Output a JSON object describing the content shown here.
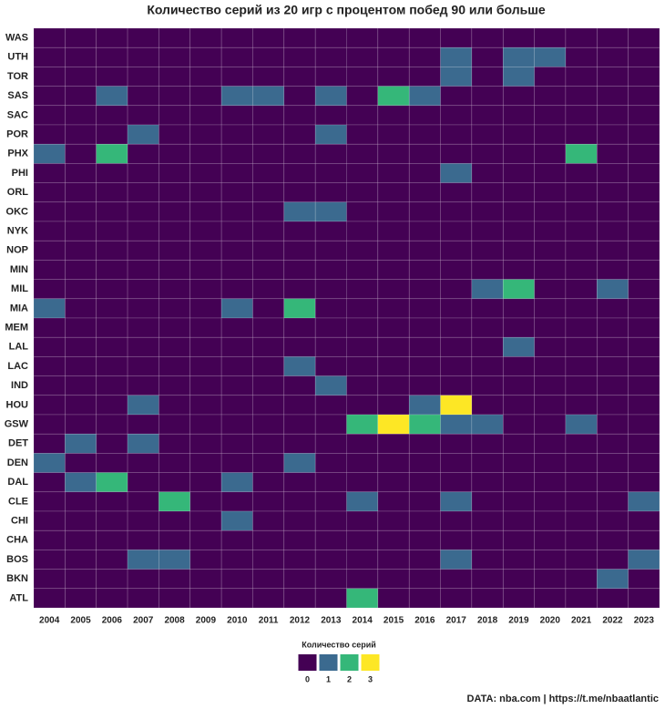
{
  "chart_data": {
    "type": "heatmap",
    "title": "Количество серий из 20 игр с процентом побед 90 или больше",
    "x_categories": [
      2004,
      2005,
      2006,
      2007,
      2008,
      2009,
      2010,
      2011,
      2012,
      2013,
      2014,
      2015,
      2016,
      2017,
      2018,
      2019,
      2020,
      2021,
      2022,
      2023
    ],
    "y_categories": [
      "WAS",
      "UTH",
      "TOR",
      "SAS",
      "SAC",
      "POR",
      "PHX",
      "PHI",
      "ORL",
      "OKC",
      "NYK",
      "NOP",
      "MIN",
      "MIL",
      "MIA",
      "MEM",
      "LAL",
      "LAC",
      "IND",
      "HOU",
      "GSW",
      "DET",
      "DEN",
      "DAL",
      "CLE",
      "CHI",
      "CHA",
      "BOS",
      "BKN",
      "ATL"
    ],
    "values": [
      [
        0,
        0,
        0,
        0,
        0,
        0,
        0,
        0,
        0,
        0,
        0,
        0,
        0,
        0,
        0,
        0,
        0,
        0,
        0,
        0
      ],
      [
        0,
        0,
        0,
        0,
        0,
        0,
        0,
        0,
        0,
        0,
        0,
        0,
        0,
        1,
        0,
        1,
        1,
        0,
        0,
        0
      ],
      [
        0,
        0,
        0,
        0,
        0,
        0,
        0,
        0,
        0,
        0,
        0,
        0,
        0,
        1,
        0,
        1,
        0,
        0,
        0,
        0
      ],
      [
        0,
        0,
        1,
        0,
        0,
        0,
        1,
        1,
        0,
        1,
        0,
        2,
        1,
        0,
        0,
        0,
        0,
        0,
        0,
        0
      ],
      [
        0,
        0,
        0,
        0,
        0,
        0,
        0,
        0,
        0,
        0,
        0,
        0,
        0,
        0,
        0,
        0,
        0,
        0,
        0,
        0
      ],
      [
        0,
        0,
        0,
        1,
        0,
        0,
        0,
        0,
        0,
        1,
        0,
        0,
        0,
        0,
        0,
        0,
        0,
        0,
        0,
        0
      ],
      [
        1,
        0,
        2,
        0,
        0,
        0,
        0,
        0,
        0,
        0,
        0,
        0,
        0,
        0,
        0,
        0,
        0,
        2,
        0,
        0
      ],
      [
        0,
        0,
        0,
        0,
        0,
        0,
        0,
        0,
        0,
        0,
        0,
        0,
        0,
        1,
        0,
        0,
        0,
        0,
        0,
        0
      ],
      [
        0,
        0,
        0,
        0,
        0,
        0,
        0,
        0,
        0,
        0,
        0,
        0,
        0,
        0,
        0,
        0,
        0,
        0,
        0,
        0
      ],
      [
        0,
        0,
        0,
        0,
        0,
        0,
        0,
        0,
        1,
        1,
        0,
        0,
        0,
        0,
        0,
        0,
        0,
        0,
        0,
        0
      ],
      [
        0,
        0,
        0,
        0,
        0,
        0,
        0,
        0,
        0,
        0,
        0,
        0,
        0,
        0,
        0,
        0,
        0,
        0,
        0,
        0
      ],
      [
        0,
        0,
        0,
        0,
        0,
        0,
        0,
        0,
        0,
        0,
        0,
        0,
        0,
        0,
        0,
        0,
        0,
        0,
        0,
        0
      ],
      [
        0,
        0,
        0,
        0,
        0,
        0,
        0,
        0,
        0,
        0,
        0,
        0,
        0,
        0,
        0,
        0,
        0,
        0,
        0,
        0
      ],
      [
        0,
        0,
        0,
        0,
        0,
        0,
        0,
        0,
        0,
        0,
        0,
        0,
        0,
        0,
        1,
        2,
        0,
        0,
        1,
        0
      ],
      [
        1,
        0,
        0,
        0,
        0,
        0,
        1,
        0,
        2,
        0,
        0,
        0,
        0,
        0,
        0,
        0,
        0,
        0,
        0,
        0
      ],
      [
        0,
        0,
        0,
        0,
        0,
        0,
        0,
        0,
        0,
        0,
        0,
        0,
        0,
        0,
        0,
        0,
        0,
        0,
        0,
        0
      ],
      [
        0,
        0,
        0,
        0,
        0,
        0,
        0,
        0,
        0,
        0,
        0,
        0,
        0,
        0,
        0,
        1,
        0,
        0,
        0,
        0
      ],
      [
        0,
        0,
        0,
        0,
        0,
        0,
        0,
        0,
        1,
        0,
        0,
        0,
        0,
        0,
        0,
        0,
        0,
        0,
        0,
        0
      ],
      [
        0,
        0,
        0,
        0,
        0,
        0,
        0,
        0,
        0,
        1,
        0,
        0,
        0,
        0,
        0,
        0,
        0,
        0,
        0,
        0
      ],
      [
        0,
        0,
        0,
        1,
        0,
        0,
        0,
        0,
        0,
        0,
        0,
        0,
        1,
        3,
        0,
        0,
        0,
        0,
        0,
        0
      ],
      [
        0,
        0,
        0,
        0,
        0,
        0,
        0,
        0,
        0,
        0,
        2,
        3,
        2,
        1,
        1,
        0,
        0,
        1,
        0,
        0
      ],
      [
        0,
        1,
        0,
        1,
        0,
        0,
        0,
        0,
        0,
        0,
        0,
        0,
        0,
        0,
        0,
        0,
        0,
        0,
        0,
        0
      ],
      [
        1,
        0,
        0,
        0,
        0,
        0,
        0,
        0,
        1,
        0,
        0,
        0,
        0,
        0,
        0,
        0,
        0,
        0,
        0,
        0
      ],
      [
        0,
        1,
        2,
        0,
        0,
        0,
        1,
        0,
        0,
        0,
        0,
        0,
        0,
        0,
        0,
        0,
        0,
        0,
        0,
        0
      ],
      [
        0,
        0,
        0,
        0,
        2,
        0,
        0,
        0,
        0,
        0,
        1,
        0,
        0,
        1,
        0,
        0,
        0,
        0,
        0,
        1
      ],
      [
        0,
        0,
        0,
        0,
        0,
        0,
        1,
        0,
        0,
        0,
        0,
        0,
        0,
        0,
        0,
        0,
        0,
        0,
        0,
        0
      ],
      [
        0,
        0,
        0,
        0,
        0,
        0,
        0,
        0,
        0,
        0,
        0,
        0,
        0,
        0,
        0,
        0,
        0,
        0,
        0,
        0
      ],
      [
        0,
        0,
        0,
        1,
        1,
        0,
        0,
        0,
        0,
        0,
        0,
        0,
        0,
        1,
        0,
        0,
        0,
        0,
        0,
        1
      ],
      [
        0,
        0,
        0,
        0,
        0,
        0,
        0,
        0,
        0,
        0,
        0,
        0,
        0,
        0,
        0,
        0,
        0,
        0,
        1,
        0
      ],
      [
        0,
        0,
        0,
        0,
        0,
        0,
        0,
        0,
        0,
        0,
        2,
        0,
        0,
        0,
        0,
        0,
        0,
        0,
        0,
        0
      ]
    ],
    "legend_title": "Количество серий",
    "legend_levels": [
      0,
      1,
      2,
      3
    ],
    "colors": [
      "#440154",
      "#3b6a8f",
      "#35b779",
      "#fde725"
    ],
    "caption": "DATA: nba.com | https://t.me/nbaatlantic"
  }
}
